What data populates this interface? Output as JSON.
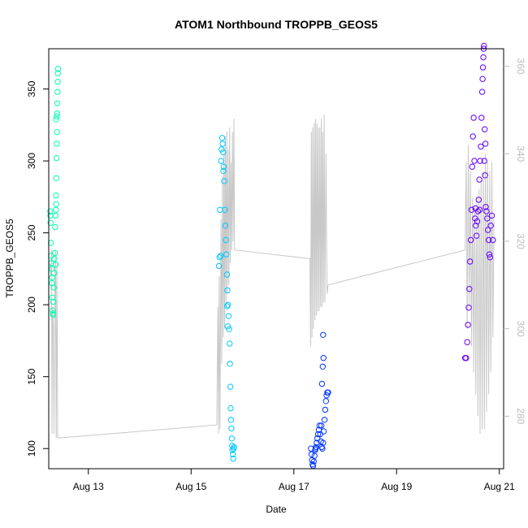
{
  "chart_data": {
    "type": "scatter",
    "title": "ATOM1 Northbound TROPPB_GEOS5",
    "xlabel": "Date",
    "ylabel": "TROPPB_GEOS5",
    "xlim": [
      "2016-08-12T05:30",
      "2016-08-21T02:00"
    ],
    "ylim": [
      86,
      378
    ],
    "y2lim": [
      268,
      364
    ],
    "x_ticks": [
      {
        "date": "2016-08-13T00:00",
        "label": "Aug 13"
      },
      {
        "date": "2016-08-15T00:00",
        "label": "Aug 15"
      },
      {
        "date": "2016-08-17T00:00",
        "label": "Aug 17"
      },
      {
        "date": "2016-08-19T00:00",
        "label": "Aug 19"
      },
      {
        "date": "2016-08-21T00:00",
        "label": "Aug 21"
      }
    ],
    "y_ticks": [
      100,
      150,
      200,
      250,
      300,
      350
    ],
    "y2_ticks": [
      280,
      300,
      320,
      340,
      360
    ],
    "grid": false,
    "legend": "none",
    "line_color": "#c8c8c8",
    "series": [
      {
        "color": "#00ffb2",
        "points": [
          [
            "2016-08-12T06:10",
            265
          ],
          [
            "2016-08-12T06:20",
            257
          ],
          [
            "2016-08-12T06:30",
            243
          ],
          [
            "2016-08-12T06:40",
            229
          ],
          [
            "2016-08-12T06:50",
            225
          ],
          [
            "2016-08-12T07:00",
            215
          ],
          [
            "2016-08-12T07:10",
            205
          ],
          [
            "2016-08-12T07:20",
            196
          ],
          [
            "2016-08-12T07:30",
            193
          ],
          [
            "2016-08-12T07:40",
            202
          ],
          [
            "2016-08-12T07:50",
            212
          ],
          [
            "2016-08-12T08:00",
            222
          ],
          [
            "2016-08-12T08:10",
            232
          ],
          [
            "2016-08-12T08:20",
            236
          ],
          [
            "2016-08-12T08:30",
            254
          ],
          [
            "2016-08-12T08:40",
            262
          ],
          [
            "2016-08-12T08:50",
            266
          ],
          [
            "2016-08-12T09:00",
            270
          ],
          [
            "2016-08-12T09:05",
            288
          ],
          [
            "2016-08-12T09:10",
            302
          ],
          [
            "2016-08-12T09:15",
            312
          ],
          [
            "2016-08-12T09:20",
            320
          ],
          [
            "2016-08-12T09:25",
            333
          ],
          [
            "2016-08-12T09:30",
            340
          ],
          [
            "2016-08-12T09:35",
            348
          ],
          [
            "2016-08-12T09:40",
            355
          ],
          [
            "2016-08-12T09:45",
            361
          ],
          [
            "2016-08-12T09:50",
            364
          ],
          [
            "2016-08-12T08:55",
            276
          ],
          [
            "2016-08-12T06:15",
            262
          ],
          [
            "2016-08-12T06:35",
            234
          ],
          [
            "2016-08-12T07:05",
            219
          ],
          [
            "2016-08-12T07:35",
            194
          ],
          [
            "2016-08-12T09:15",
            331
          ],
          [
            "2016-08-12T09:00",
            329
          ],
          [
            "2016-08-12T08:45",
            228
          ]
        ]
      },
      {
        "color": "#00c8ff",
        "points": [
          [
            "2016-08-15T13:00",
            227
          ],
          [
            "2016-08-15T13:15",
            233
          ],
          [
            "2016-08-15T13:30",
            266
          ],
          [
            "2016-08-15T14:00",
            300
          ],
          [
            "2016-08-15T14:15",
            308
          ],
          [
            "2016-08-15T14:30",
            316
          ],
          [
            "2016-08-15T14:45",
            312
          ],
          [
            "2016-08-15T15:00",
            306
          ],
          [
            "2016-08-15T15:15",
            296
          ],
          [
            "2016-08-15T15:30",
            286
          ],
          [
            "2016-08-15T15:45",
            266
          ],
          [
            "2016-08-15T16:00",
            255
          ],
          [
            "2016-08-15T16:15",
            245
          ],
          [
            "2016-08-15T16:30",
            235
          ],
          [
            "2016-08-15T16:45",
            221
          ],
          [
            "2016-08-15T17:00",
            210
          ],
          [
            "2016-08-15T17:15",
            200
          ],
          [
            "2016-08-15T17:30",
            192
          ],
          [
            "2016-08-15T17:45",
            183
          ],
          [
            "2016-08-15T18:00",
            173
          ],
          [
            "2016-08-15T18:10",
            159
          ],
          [
            "2016-08-15T18:20",
            143
          ],
          [
            "2016-08-15T18:30",
            128
          ],
          [
            "2016-08-15T18:40",
            120
          ],
          [
            "2016-08-15T18:50",
            114
          ],
          [
            "2016-08-15T19:00",
            107
          ],
          [
            "2016-08-15T19:10",
            102
          ],
          [
            "2016-08-15T19:20",
            99
          ],
          [
            "2016-08-15T19:30",
            96
          ],
          [
            "2016-08-15T19:40",
            93
          ],
          [
            "2016-08-15T19:50",
            100
          ],
          [
            "2016-08-15T20:00",
            101
          ],
          [
            "2016-08-15T13:45",
            234
          ],
          [
            "2016-08-15T16:50",
            199
          ],
          [
            "2016-08-15T17:05",
            185
          ],
          [
            "2016-08-15T15:05",
            293
          ]
        ]
      },
      {
        "color": "#0034ff",
        "points": [
          [
            "2016-08-17T08:00",
            100
          ],
          [
            "2016-08-17T08:15",
            96
          ],
          [
            "2016-08-17T08:30",
            92
          ],
          [
            "2016-08-17T08:45",
            89
          ],
          [
            "2016-08-17T09:00",
            88
          ],
          [
            "2016-08-17T09:20",
            91
          ],
          [
            "2016-08-17T09:40",
            95
          ],
          [
            "2016-08-17T10:00",
            99
          ],
          [
            "2016-08-17T10:20",
            101
          ],
          [
            "2016-08-17T10:40",
            104
          ],
          [
            "2016-08-17T11:00",
            107
          ],
          [
            "2016-08-17T11:20",
            110
          ],
          [
            "2016-08-17T11:40",
            113
          ],
          [
            "2016-08-17T12:00",
            116
          ],
          [
            "2016-08-17T12:20",
            110
          ],
          [
            "2016-08-17T12:40",
            105
          ],
          [
            "2016-08-17T13:00",
            101
          ],
          [
            "2016-08-17T13:20",
            100
          ],
          [
            "2016-08-17T13:40",
            104
          ],
          [
            "2016-08-17T14:00",
            112
          ],
          [
            "2016-08-17T14:20",
            120
          ],
          [
            "2016-08-17T14:40",
            127
          ],
          [
            "2016-08-17T15:00",
            133
          ],
          [
            "2016-08-17T15:20",
            137
          ],
          [
            "2016-08-17T15:40",
            139
          ],
          [
            "2016-08-17T16:00",
            139
          ],
          [
            "2016-08-17T13:10",
            145
          ],
          [
            "2016-08-17T13:30",
            157
          ],
          [
            "2016-08-17T13:50",
            163
          ],
          [
            "2016-08-17T13:40",
            179
          ],
          [
            "2016-08-17T10:10",
            100
          ],
          [
            "2016-08-17T12:50",
            116
          ]
        ]
      },
      {
        "color": "#6400ff",
        "points": [
          [
            "2016-08-20T08:00",
            163
          ],
          [
            "2016-08-20T08:30",
            163
          ],
          [
            "2016-08-20T09:00",
            174
          ],
          [
            "2016-08-20T09:20",
            186
          ],
          [
            "2016-08-20T09:40",
            198
          ],
          [
            "2016-08-20T10:00",
            211
          ],
          [
            "2016-08-20T10:20",
            230
          ],
          [
            "2016-08-20T10:40",
            245
          ],
          [
            "2016-08-20T11:00",
            266
          ],
          [
            "2016-08-20T11:20",
            296
          ],
          [
            "2016-08-20T11:40",
            317
          ],
          [
            "2016-08-20T12:00",
            330
          ],
          [
            "2016-08-20T12:20",
            300
          ],
          [
            "2016-08-20T12:40",
            260
          ],
          [
            "2016-08-20T13:00",
            255
          ],
          [
            "2016-08-20T13:20",
            248
          ],
          [
            "2016-08-20T13:40",
            258
          ],
          [
            "2016-08-20T14:00",
            265
          ],
          [
            "2016-08-20T14:20",
            273
          ],
          [
            "2016-08-20T14:40",
            287
          ],
          [
            "2016-08-20T15:00",
            300
          ],
          [
            "2016-08-20T15:20",
            310
          ],
          [
            "2016-08-20T15:40",
            330
          ],
          [
            "2016-08-20T16:00",
            348
          ],
          [
            "2016-08-20T16:10",
            357
          ],
          [
            "2016-08-20T16:20",
            365
          ],
          [
            "2016-08-20T16:30",
            372
          ],
          [
            "2016-08-20T16:40",
            378
          ],
          [
            "2016-08-20T16:50",
            380
          ],
          [
            "2016-08-20T17:00",
            300
          ],
          [
            "2016-08-20T17:20",
            290
          ],
          [
            "2016-08-20T17:40",
            268
          ],
          [
            "2016-08-20T18:00",
            265
          ],
          [
            "2016-08-20T18:20",
            260
          ],
          [
            "2016-08-20T18:40",
            252
          ],
          [
            "2016-08-20T19:00",
            245
          ],
          [
            "2016-08-20T19:20",
            235
          ],
          [
            "2016-08-20T19:40",
            233
          ],
          [
            "2016-08-20T20:00",
            255
          ],
          [
            "2016-08-20T20:30",
            262
          ],
          [
            "2016-08-20T21:00",
            245
          ],
          [
            "2016-08-20T17:10",
            322
          ],
          [
            "2016-08-20T17:30",
            312
          ],
          [
            "2016-08-20T12:50",
            267
          ],
          [
            "2016-08-20T14:50",
            266
          ]
        ]
      }
    ],
    "right_axis_trace": [
      [
        "2016-08-12T06:10",
        315
      ],
      [
        "2016-08-12T06:30",
        312
      ],
      [
        "2016-08-12T06:50",
        318
      ],
      [
        "2016-08-12T07:00",
        276
      ],
      [
        "2016-08-12T07:20",
        305
      ],
      [
        "2016-08-12T07:40",
        300
      ],
      [
        "2016-08-12T08:00",
        276
      ],
      [
        "2016-08-12T08:20",
        310
      ],
      [
        "2016-08-12T08:40",
        318
      ],
      [
        "2016-08-12T09:00",
        275
      ],
      [
        "2016-08-12T09:20",
        315
      ],
      [
        "2016-08-12T09:40",
        275
      ],
      [
        "2016-08-12T10:00",
        275
      ],
      [
        "2016-08-15T12:00",
        278
      ],
      [
        "2016-08-15T12:30",
        305
      ],
      [
        "2016-08-15T12:50",
        276
      ],
      [
        "2016-08-15T13:10",
        312
      ],
      [
        "2016-08-15T13:30",
        277
      ],
      [
        "2016-08-15T14:00",
        325
      ],
      [
        "2016-08-15T14:20",
        292
      ],
      [
        "2016-08-15T14:40",
        335
      ],
      [
        "2016-08-15T15:00",
        298
      ],
      [
        "2016-08-15T15:20",
        340
      ],
      [
        "2016-08-15T15:40",
        300
      ],
      [
        "2016-08-15T16:00",
        344
      ],
      [
        "2016-08-15T16:20",
        305
      ],
      [
        "2016-08-15T16:40",
        345
      ],
      [
        "2016-08-15T17:00",
        308
      ],
      [
        "2016-08-15T17:20",
        341
      ],
      [
        "2016-08-15T17:40",
        310
      ],
      [
        "2016-08-15T18:00",
        346
      ],
      [
        "2016-08-15T18:20",
        315
      ],
      [
        "2016-08-15T18:40",
        338
      ],
      [
        "2016-08-15T19:00",
        318
      ],
      [
        "2016-08-15T19:20",
        345
      ],
      [
        "2016-08-15T19:40",
        320
      ],
      [
        "2016-08-15T20:00",
        348
      ],
      [
        "2016-08-15T20:20",
        318
      ],
      [
        "2016-08-17T07:30",
        316
      ],
      [
        "2016-08-17T07:50",
        296
      ],
      [
        "2016-08-17T08:10",
        345
      ],
      [
        "2016-08-17T08:30",
        298
      ],
      [
        "2016-08-17T08:50",
        346
      ],
      [
        "2016-08-17T09:10",
        300
      ],
      [
        "2016-08-17T09:30",
        347
      ],
      [
        "2016-08-17T09:50",
        302
      ],
      [
        "2016-08-17T10:10",
        348
      ],
      [
        "2016-08-17T10:30",
        303
      ],
      [
        "2016-08-17T10:50",
        347
      ],
      [
        "2016-08-17T11:10",
        304
      ],
      [
        "2016-08-17T11:30",
        346
      ],
      [
        "2016-08-17T11:50",
        304
      ],
      [
        "2016-08-17T12:10",
        346
      ],
      [
        "2016-08-17T12:30",
        305
      ],
      [
        "2016-08-17T12:50",
        348
      ],
      [
        "2016-08-17T13:10",
        305
      ],
      [
        "2016-08-17T13:30",
        345
      ],
      [
        "2016-08-17T13:50",
        306
      ],
      [
        "2016-08-17T14:10",
        349
      ],
      [
        "2016-08-17T14:30",
        306
      ],
      [
        "2016-08-17T15:00",
        340
      ],
      [
        "2016-08-17T15:30",
        308
      ],
      [
        "2016-08-17T16:00",
        310
      ],
      [
        "2016-08-20T08:00",
        318
      ],
      [
        "2016-08-20T08:30",
        338
      ],
      [
        "2016-08-20T09:00",
        300
      ],
      [
        "2016-08-20T09:30",
        342
      ],
      [
        "2016-08-20T10:00",
        305
      ],
      [
        "2016-08-20T10:30",
        336
      ],
      [
        "2016-08-20T11:00",
        296
      ],
      [
        "2016-08-20T11:30",
        330
      ],
      [
        "2016-08-20T12:00",
        290
      ],
      [
        "2016-08-20T12:30",
        328
      ],
      [
        "2016-08-20T13:00",
        285
      ],
      [
        "2016-08-20T13:30",
        330
      ],
      [
        "2016-08-20T14:00",
        280
      ],
      [
        "2016-08-20T14:30",
        332
      ],
      [
        "2016-08-20T15:00",
        276
      ],
      [
        "2016-08-20T15:30",
        334
      ],
      [
        "2016-08-20T16:00",
        277
      ],
      [
        "2016-08-20T16:30",
        336
      ],
      [
        "2016-08-20T17:00",
        277
      ],
      [
        "2016-08-20T17:30",
        340
      ],
      [
        "2016-08-20T18:00",
        281
      ],
      [
        "2016-08-20T18:30",
        338
      ],
      [
        "2016-08-20T19:00",
        285
      ],
      [
        "2016-08-20T19:30",
        336
      ],
      [
        "2016-08-20T20:00",
        290
      ],
      [
        "2016-08-20T20:30",
        338
      ],
      [
        "2016-08-20T21:00",
        298
      ],
      [
        "2016-08-20T21:30",
        325
      ]
    ]
  }
}
